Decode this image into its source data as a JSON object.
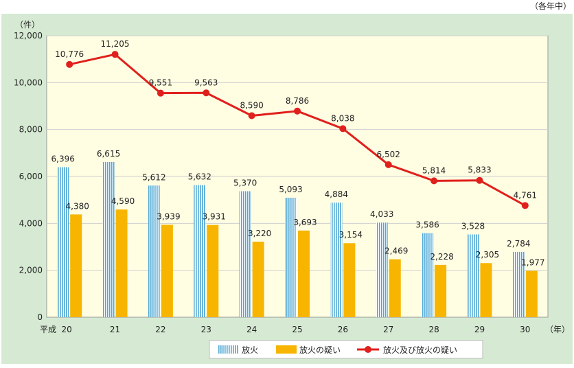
{
  "chart_data": {
    "type": "bar",
    "y_unit_label": "（件）",
    "x_unit_label": "（年）",
    "period_note": "（各年中）",
    "era_prefix": "平成",
    "categories": [
      "20",
      "21",
      "22",
      "23",
      "24",
      "25",
      "26",
      "27",
      "28",
      "29",
      "30"
    ],
    "series": [
      {
        "name": "放火",
        "kind": "bar",
        "color": "#4fa8d4",
        "values": [
          6396,
          6615,
          5612,
          5632,
          5370,
          5093,
          4884,
          4033,
          3586,
          3528,
          2784
        ],
        "labels": [
          "6,396",
          "6,615",
          "5,612",
          "5,632",
          "5,370",
          "5,093",
          "4,884",
          "4,033",
          "3,586",
          "3,528",
          "2,784"
        ]
      },
      {
        "name": "放火の疑い",
        "kind": "bar",
        "color": "#f7b500",
        "values": [
          4380,
          4590,
          3939,
          3931,
          3220,
          3693,
          3154,
          2469,
          2228,
          2305,
          1977
        ],
        "labels": [
          "4,380",
          "4,590",
          "3,939",
          "3,931",
          "3,220",
          "3,693",
          "3,154",
          "2,469",
          "2,228",
          "2,305",
          "1,977"
        ]
      },
      {
        "name": "放火及び放火の疑い",
        "kind": "line",
        "color": "#e0201c",
        "values": [
          10776,
          11205,
          9551,
          9563,
          8590,
          8786,
          8038,
          6502,
          5814,
          5833,
          4761
        ],
        "labels": [
          "10,776",
          "11,205",
          "9,551",
          "9,563",
          "8,590",
          "8,786",
          "8,038",
          "6,502",
          "5,814",
          "5,833",
          "4,761"
        ]
      }
    ],
    "yticks": [
      0,
      2000,
      4000,
      6000,
      8000,
      10000,
      12000
    ],
    "ytick_labels": [
      "0",
      "2,000",
      "4,000",
      "6,000",
      "8,000",
      "10,000",
      "12,000"
    ],
    "ylim": [
      0,
      12000
    ],
    "grid": true,
    "legend": "bottom",
    "background_color": "#d6ead3",
    "plot_color": "#fffde2",
    "grid_color": "#cfcfcf"
  }
}
